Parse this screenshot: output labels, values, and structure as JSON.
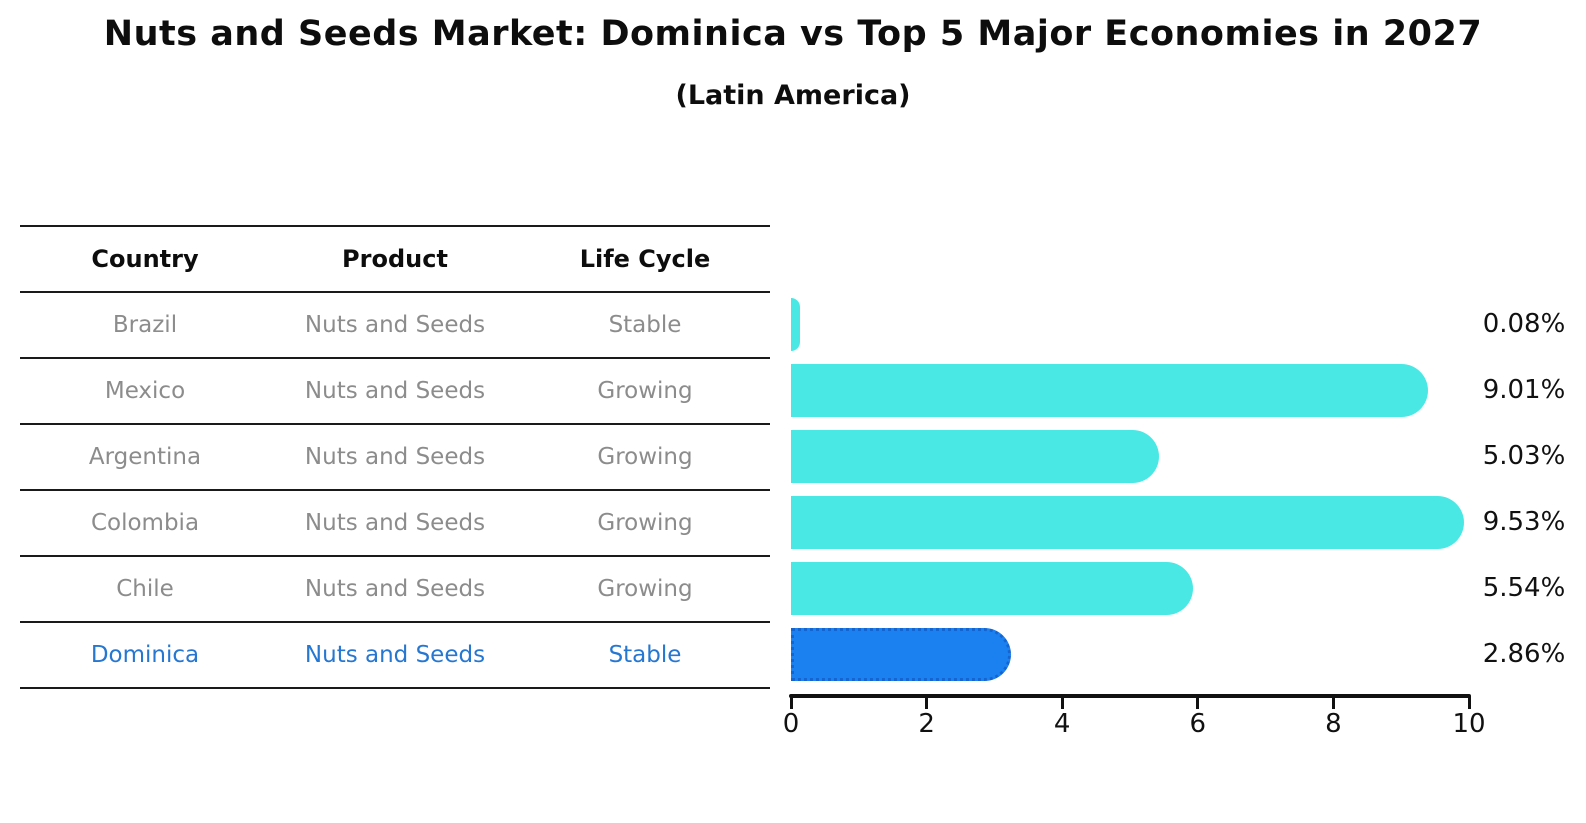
{
  "title": "Nuts and Seeds Market: Dominica vs Top 5 Major Economies in 2027",
  "subtitle": "(Latin America)",
  "table": {
    "headers": [
      "Country",
      "Product",
      "Life Cycle"
    ],
    "rows": [
      {
        "country": "Brazil",
        "product": "Nuts and Seeds",
        "life_cycle": "Stable",
        "highlighted": false
      },
      {
        "country": "Mexico",
        "product": "Nuts and Seeds",
        "life_cycle": "Growing",
        "highlighted": false
      },
      {
        "country": "Argentina",
        "product": "Nuts and Seeds",
        "life_cycle": "Growing",
        "highlighted": false
      },
      {
        "country": "Colombia",
        "product": "Nuts and Seeds",
        "life_cycle": "Growing",
        "highlighted": false
      },
      {
        "country": "Chile",
        "product": "Nuts and Seeds",
        "life_cycle": "Growing",
        "highlighted": false
      },
      {
        "country": "Dominica",
        "product": "Nuts and Seeds",
        "life_cycle": "Stable",
        "highlighted": true
      }
    ]
  },
  "chart_data": {
    "type": "bar",
    "orientation": "horizontal",
    "title": "Nuts and Seeds Market: Dominica vs Top 5 Major Economies in 2027",
    "subtitle": "(Latin America)",
    "categories": [
      "Brazil",
      "Mexico",
      "Argentina",
      "Colombia",
      "Chile",
      "Dominica"
    ],
    "values": [
      0.08,
      9.01,
      5.03,
      9.53,
      5.54,
      2.86
    ],
    "value_labels": [
      "0.08%",
      "9.01%",
      "5.03%",
      "9.53%",
      "5.54%",
      "2.86%"
    ],
    "highlight_index": 5,
    "xlim": [
      0,
      10
    ],
    "x_ticks": [
      0,
      2,
      4,
      6,
      8,
      10
    ],
    "x_tick_labels": [
      "0",
      "2",
      "4",
      "6",
      "8",
      "10"
    ],
    "grid": false,
    "legend": "none",
    "bar_color": "#4AE8E4",
    "highlight_bar_color": "#1B81F0",
    "highlight_border_color": "#1565D0"
  },
  "colors": {
    "background": "#FFFFFF",
    "text_primary": "#111111",
    "text_muted": "#8C8C8C",
    "highlight_text": "#2577D2",
    "table_line": "#1A1A1A",
    "axis": "#111111"
  }
}
